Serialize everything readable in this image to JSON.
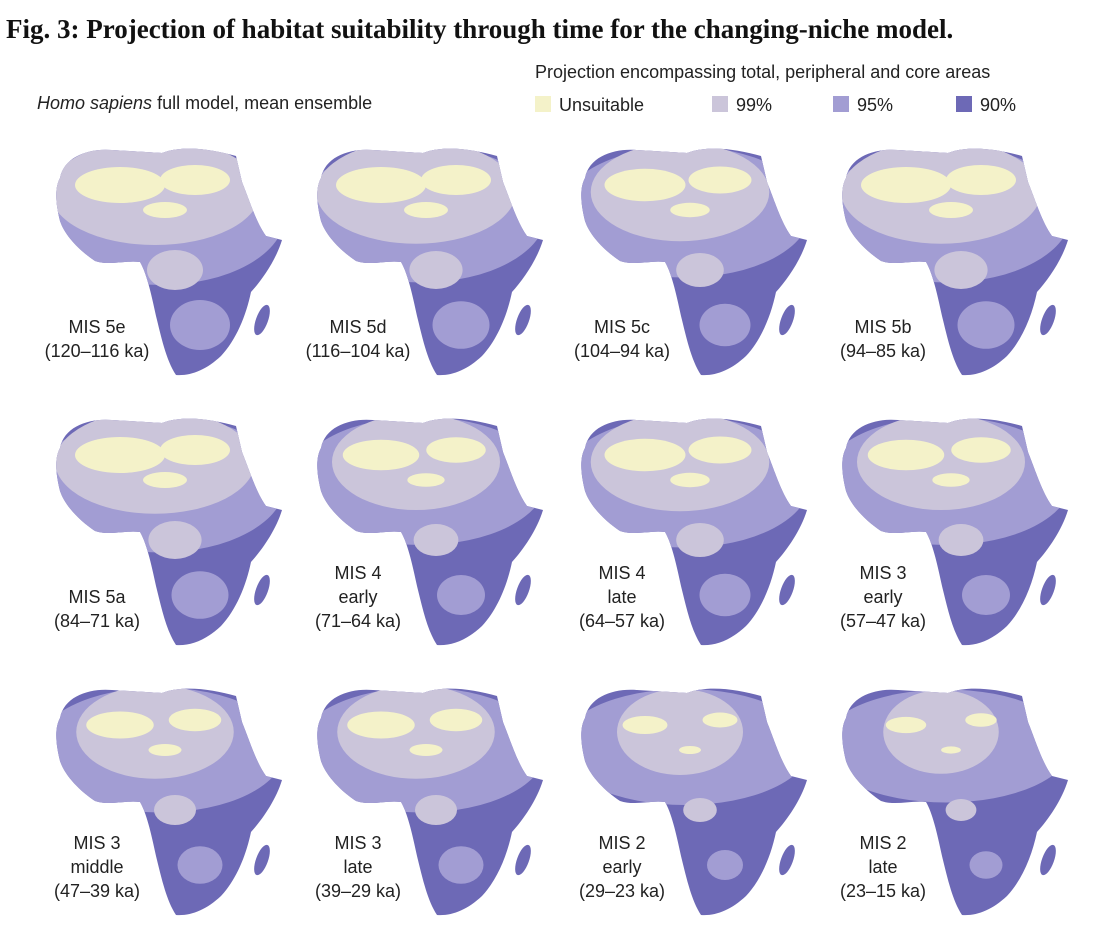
{
  "title": "Fig. 3: Projection of habitat suitability through time for the changing-niche model.",
  "subtitle": {
    "italic": "Homo sapiens",
    "text": " full model, mean ensemble"
  },
  "legend": {
    "title": "Projection encompassing total, peripheral and core areas",
    "items": [
      {
        "label": "Unsuitable",
        "color": "#f4f2c9"
      },
      {
        "label": "99%",
        "color": "#cbc5da"
      },
      {
        "label": "95%",
        "color": "#a29dd3"
      },
      {
        "label": "90%",
        "color": "#6d69b6"
      }
    ]
  },
  "panels": [
    {
      "lines": [
        "MIS 5e",
        "(120–116 ka)"
      ]
    },
    {
      "lines": [
        "MIS 5d",
        "(116–104 ka)"
      ]
    },
    {
      "lines": [
        "MIS 5c",
        "(104–94 ka)"
      ]
    },
    {
      "lines": [
        "MIS 5b",
        "(94–85 ka)"
      ]
    },
    {
      "lines": [
        "MIS 5a",
        "(84–71 ka)"
      ]
    },
    {
      "lines": [
        "MIS 4",
        "early",
        "(71–64 ka)"
      ]
    },
    {
      "lines": [
        "MIS 4",
        "late",
        "(64–57 ka)"
      ]
    },
    {
      "lines": [
        "MIS 3",
        "early",
        "(57–47 ka)"
      ]
    },
    {
      "lines": [
        "MIS 3",
        "middle",
        "(47–39 ka)"
      ]
    },
    {
      "lines": [
        "MIS 3",
        "late",
        "(39–29 ka)"
      ]
    },
    {
      "lines": [
        "MIS 2",
        "early",
        "(29–23 ka)"
      ]
    },
    {
      "lines": [
        "MIS 2",
        "late",
        "(23–15 ka)"
      ]
    }
  ]
}
